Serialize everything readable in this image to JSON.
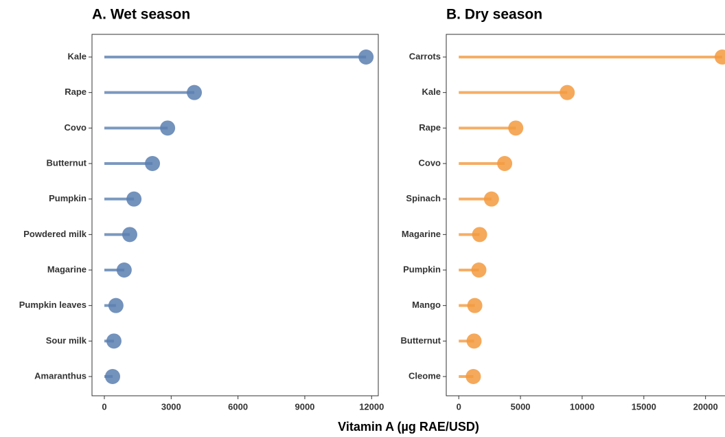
{
  "xlabel": "Vitamin A (µg RAE/USD)",
  "chart_data": [
    {
      "type": "lollipop",
      "title": "A. Wet season",
      "color": "#5a7fb0",
      "categories": [
        "Kale",
        "Rape",
        "Covo",
        "Butternut",
        "Pumpkin",
        "Powdered milk",
        "Magarine",
        "Pumpkin leaves",
        "Sour milk",
        "Amaranthus"
      ],
      "values": [
        11750,
        4040,
        2840,
        2160,
        1330,
        1140,
        890,
        520,
        430,
        370
      ],
      "xlim": [
        -555,
        12300
      ],
      "xticks": [
        0,
        3000,
        6000,
        9000,
        12000
      ]
    },
    {
      "type": "lollipop",
      "title": "B. Dry season",
      "color": "#f39a3e",
      "categories": [
        "Carrots",
        "Kale",
        "Rape",
        "Covo",
        "Spinach",
        "Magarine",
        "Pumpkin",
        "Mango",
        "Butternut",
        "Cleome"
      ],
      "values": [
        21350,
        8790,
        4620,
        3720,
        2650,
        1690,
        1630,
        1300,
        1240,
        1180
      ],
      "xlim": [
        -1014,
        21800
      ],
      "xticks": [
        0,
        5000,
        10000,
        15000,
        20000
      ]
    }
  ]
}
